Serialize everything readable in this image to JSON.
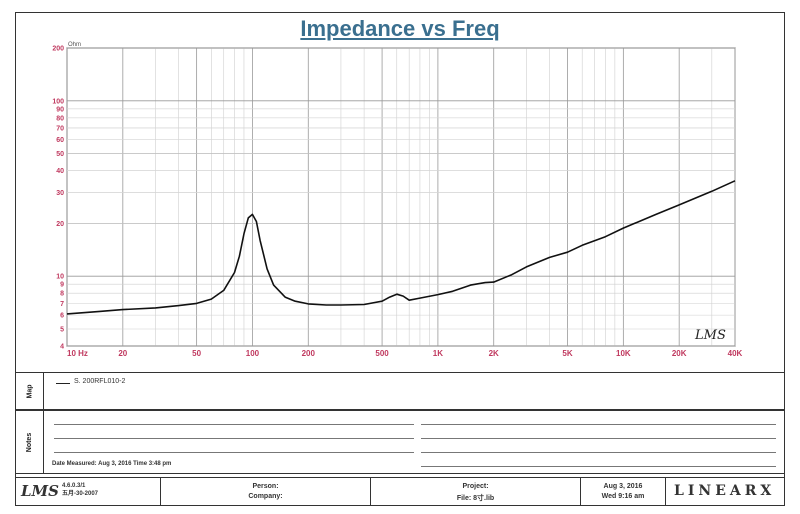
{
  "title": "Impedance vs Freq",
  "chart_data": {
    "type": "line",
    "title": "Impedance vs Freq",
    "xlabel": "",
    "ylabel": "Ohm",
    "xscale": "log",
    "yscale": "log",
    "xlim": [
      10,
      40000
    ],
    "ylim": [
      4,
      200
    ],
    "x_ticks": [
      {
        "v": 10,
        "label": "10 Hz"
      },
      {
        "v": 20,
        "label": "20"
      },
      {
        "v": 50,
        "label": "50"
      },
      {
        "v": 100,
        "label": "100"
      },
      {
        "v": 200,
        "label": "200"
      },
      {
        "v": 500,
        "label": "500"
      },
      {
        "v": 1000,
        "label": "1K"
      },
      {
        "v": 2000,
        "label": "2K"
      },
      {
        "v": 5000,
        "label": "5K"
      },
      {
        "v": 10000,
        "label": "10K"
      },
      {
        "v": 20000,
        "label": "20K"
      },
      {
        "v": 40000,
        "label": "40K"
      }
    ],
    "y_ticks": [
      {
        "v": 4,
        "label": "4"
      },
      {
        "v": 5,
        "label": "5"
      },
      {
        "v": 6,
        "label": "6"
      },
      {
        "v": 7,
        "label": "7"
      },
      {
        "v": 8,
        "label": "8"
      },
      {
        "v": 9,
        "label": "9"
      },
      {
        "v": 10,
        "label": "10"
      },
      {
        "v": 20,
        "label": "20"
      },
      {
        "v": 30,
        "label": "30"
      },
      {
        "v": 40,
        "label": "40"
      },
      {
        "v": 50,
        "label": "50"
      },
      {
        "v": 60,
        "label": "60"
      },
      {
        "v": 70,
        "label": "70"
      },
      {
        "v": 80,
        "label": "80"
      },
      {
        "v": 90,
        "label": "90"
      },
      {
        "v": 100,
        "label": "100"
      },
      {
        "v": 200,
        "label": "200"
      }
    ],
    "grid": true,
    "series": [
      {
        "name": "S. 200RFL010-2",
        "color": "#111111",
        "x": [
          10,
          15,
          20,
          30,
          40,
          50,
          60,
          70,
          80,
          85,
          90,
          95,
          100,
          105,
          110,
          120,
          130,
          150,
          170,
          200,
          250,
          300,
          400,
          500,
          550,
          600,
          650,
          700,
          800,
          1000,
          1200,
          1500,
          1800,
          2000,
          2500,
          3000,
          4000,
          5000,
          6000,
          8000,
          10000,
          15000,
          20000,
          30000,
          40000
        ],
        "y": [
          6.1,
          6.3,
          6.45,
          6.6,
          6.8,
          7.0,
          7.4,
          8.3,
          10.5,
          13,
          17.5,
          21.5,
          22.5,
          20.5,
          16,
          11,
          8.9,
          7.6,
          7.2,
          6.95,
          6.85,
          6.85,
          6.9,
          7.2,
          7.6,
          7.9,
          7.7,
          7.3,
          7.5,
          7.85,
          8.2,
          8.9,
          9.2,
          9.25,
          10.2,
          11.3,
          12.8,
          13.7,
          15,
          16.8,
          18.8,
          22.5,
          25.5,
          30.5,
          35
        ]
      }
    ],
    "legend": "bottom-left",
    "annotation": "LMS"
  },
  "panels": {
    "map_label": "Map",
    "notes_label": "Notes",
    "legend_entry": "S. 200RFL010-2",
    "date_measured": "Date Measured: Aug 3, 2016  Time 3:48 pm"
  },
  "footer": {
    "logo": "LMS",
    "version": "4.6.0.3/1",
    "version_date": "五月-30-2007",
    "person_label": "Person:",
    "company_label": "Company:",
    "project_label": "Project:",
    "file_label": "File: 8寸.lib",
    "date": "Aug 3, 2016",
    "time": "Wed 9:16 am",
    "brand": "LINEARX"
  }
}
